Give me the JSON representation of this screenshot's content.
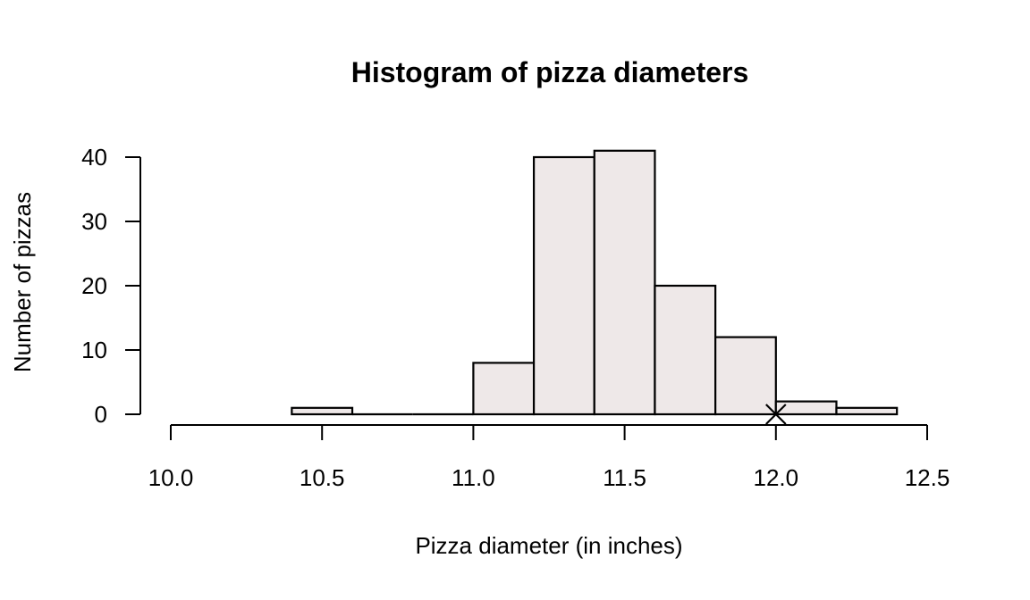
{
  "chart_data": {
    "type": "bar",
    "subtype": "histogram",
    "title": "Histogram of pizza diameters",
    "xlabel": "Pizza diameter (in inches)",
    "ylabel": "Number of pizzas",
    "bin_width": 0.2,
    "bins": [
      {
        "start": 10.4,
        "end": 10.6,
        "count": 1
      },
      {
        "start": 10.6,
        "end": 10.8,
        "count": 0
      },
      {
        "start": 10.8,
        "end": 11.0,
        "count": 0
      },
      {
        "start": 11.0,
        "end": 11.2,
        "count": 8
      },
      {
        "start": 11.2,
        "end": 11.4,
        "count": 40
      },
      {
        "start": 11.4,
        "end": 11.6,
        "count": 41
      },
      {
        "start": 11.6,
        "end": 11.8,
        "count": 20
      },
      {
        "start": 11.8,
        "end": 12.0,
        "count": 12
      },
      {
        "start": 12.0,
        "end": 12.2,
        "count": 2
      },
      {
        "start": 12.2,
        "end": 12.4,
        "count": 1
      }
    ],
    "categories": [
      "10.4-10.6",
      "10.6-10.8",
      "10.8-11.0",
      "11.0-11.2",
      "11.2-11.4",
      "11.4-11.6",
      "11.6-11.8",
      "11.8-12.0",
      "12.0-12.2",
      "12.2-12.4"
    ],
    "values": [
      1,
      0,
      0,
      8,
      40,
      41,
      20,
      12,
      2,
      1
    ],
    "x_ticks": [
      "10.0",
      "10.5",
      "11.0",
      "11.5",
      "12.0",
      "12.5"
    ],
    "y_ticks": [
      "0",
      "10",
      "20",
      "30",
      "40"
    ],
    "xlim": [
      10.0,
      12.5
    ],
    "ylim": [
      0,
      40
    ],
    "grid": false,
    "legend": null,
    "annotations": [
      {
        "type": "point-marker",
        "shape": "x",
        "x": 12.0,
        "y": 0
      }
    ],
    "colors": {
      "bar_fill": "#EEE8E8",
      "bar_stroke": "#000000",
      "background": "#FFFFFF"
    }
  }
}
